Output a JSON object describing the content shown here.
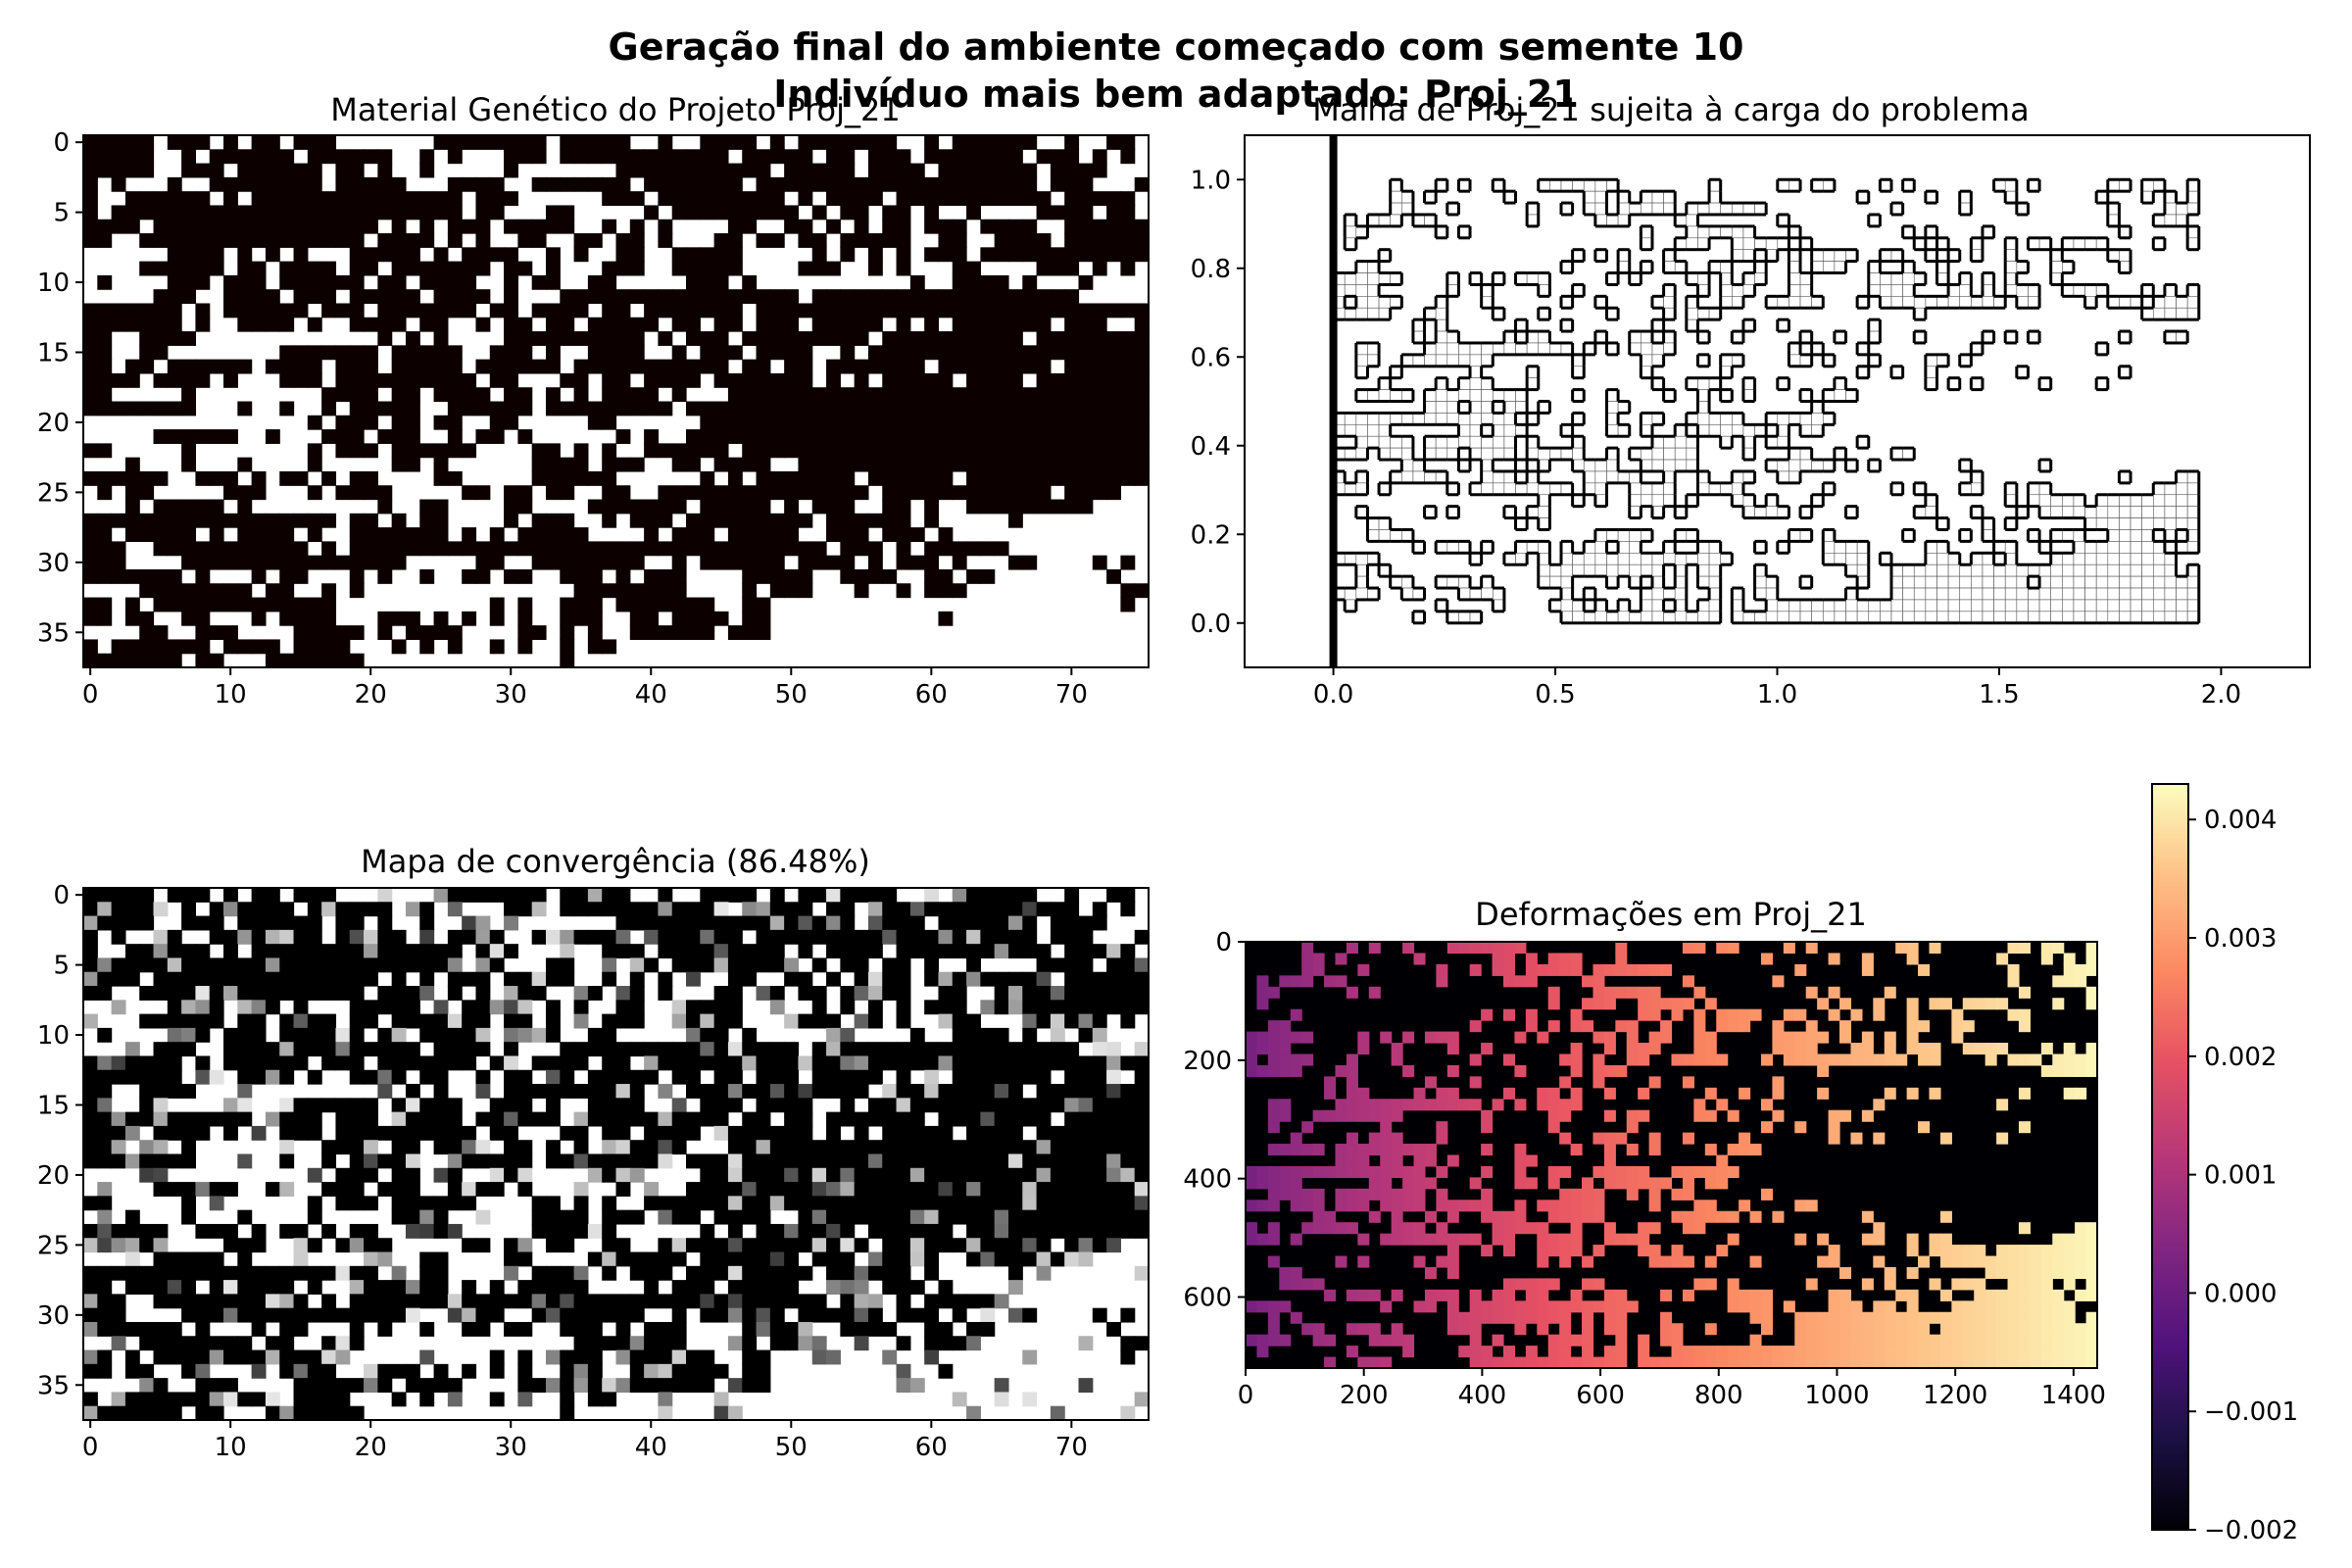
{
  "figure": {
    "title_line1": "Geração final do ambiente começado com semente 10",
    "title_line2": "Indivíduo mais bem adaptado: Proj_21"
  },
  "chart_data": [
    {
      "id": "genetic",
      "type": "heatmap",
      "title": "Material Genético do Projeto Proj_21",
      "colormap": "binary (black / white)",
      "grid_size": [
        38,
        76
      ],
      "xticks": [
        "0",
        "10",
        "20",
        "30",
        "40",
        "50",
        "60",
        "70"
      ],
      "xtick_values": [
        0,
        10,
        20,
        30,
        40,
        50,
        60,
        70
      ],
      "yticks": [
        "0",
        "5",
        "10",
        "15",
        "20",
        "25",
        "30",
        "35"
      ],
      "ytick_values": [
        0,
        5,
        10,
        15,
        20,
        25,
        30,
        35
      ],
      "xlim": [
        -0.5,
        75.5
      ],
      "ylim": [
        37.5,
        -0.5
      ],
      "colors": {
        "filled": "#0d0000",
        "empty": "#ffffff"
      },
      "rows": [
        "1111101110101101110000000111111110111110010011110101111111001011111100100110",
        "1111100101111110111111001010001110111111111111011111011011101111111011101010",
        "1111100111011111101101001000001000000011111111111011111011110111111101111000",
        "1010001001111111101111100011110011111110111111101111111111111111111101110001",
        "1001111110101111111111111110111000000111011111111101011110111111111110111110",
        "1011111111111111111111111110110001100000101111111110101101101001000011110110",
        "1111011111111111111110101011101111100101010000110011010101101110111100111111",
        "1100111111111111111101111010100110011011010001101101101111100110011110111111",
        "0000001111010101000111110101111001010011001111100000101010101110111111111111",
        "0000111111011011110110111111101101000111001111100001110010100011000011101010",
        "0100001110111011111101101111001011001100000111010000000000010011110100010000",
        "0000011100111101110111110111101000111111111111111110111111111111111111100000",
        "1111111010111111011101111111011011110110111111101111111111111111111111111111",
        "1111111010011110100111101100101101101111101101101110111110101011111110111001",
        "1100111100000000000001010100001111111111010111011111111101111111111011111111",
        "1100110000000011111110111110011101001111001011101111001011111111111111111111",
        "1101101111110111101110111110111111011111111111011011011111110111111110111111",
        "1111011110100011101111111111011000110110111101111111010101111101111011111111",
        "1100000100000000011110110111101101010111101000111111111111111111111111111111",
        "1111111100010010010111110011111101111111110111111111111111111111111111111111",
        "0000000000000000101110110110011000001100000011111111111111111111111111111111",
        "0000011111100100011101110010110100000010100111111111111111111111111111111111",
        "1100000100000000101110111111000011010100111111011111111111111111111111111111",
        "0001000100010000100000110100000011110111001101111001111111111111111111111111",
        "1111110011101011010110000110000011111100000010101111111011111101111111111111",
        "0101100000111000101111000001101101100110011111111111111101111111111110111100",
        "0001011111010000000001001100001100001111111011111010111001101001111111110000",
        "1111111111111111110110101100001011100101110111111111011111101000001000000000",
        "1101111101011110100111111101010111110000101110111110011101110100000000000000",
        "1110011111111111010111111111111111111111111111111111101110101111110000000000",
        "1110000111111111111111100000110011111111001011111101111010111010001100001010",
        "1111111010001011000101001001101100111010111000011111001111001101100000000100",
        "0000111111110110010100000000000000011111111000010111000100101110000000000011",
        "1101011111111111110000000000010100111011111110011000000000000000000000000010",
        "1101100110001011110001110101010100111001101111011000000000000100000000000000",
        "0000110011100001111101011110000110101001111110111000000000000000000000000000",
        "1011111110111101111000101010010100101100000000000000000000000000000000000000",
        "1111111011000111111100000000000000100000000000000000000000000000000000000000"
      ]
    },
    {
      "id": "mesh",
      "type": "scatter",
      "title": "Malha de Proj_21 sujeita à carga do problema",
      "xlim": [
        -0.2,
        2.2
      ],
      "ylim": [
        -0.1,
        1.1
      ],
      "xticks": [
        "0.0",
        "0.5",
        "1.0",
        "1.5",
        "2.0"
      ],
      "xtick_values": [
        0,
        0.5,
        1,
        1.5,
        2
      ],
      "yticks": [
        "0.0",
        "0.2",
        "0.4",
        "0.6",
        "0.8",
        "1.0"
      ],
      "ytick_values": [
        0,
        0.2,
        0.4,
        0.6,
        0.8,
        1.0
      ],
      "support_x": 0.0,
      "material_region_x_range": [
        0.0,
        1.95
      ],
      "material_region_y_range": [
        0.0,
        1.0
      ]
    },
    {
      "id": "convergence",
      "type": "heatmap",
      "title": "Mapa de convergência (86.48%)",
      "colormap": "gray (black = 1, white = 0)",
      "convergence_percent": 86.48,
      "grid_size": [
        38,
        76
      ],
      "xticks": [
        "0",
        "10",
        "20",
        "30",
        "40",
        "50",
        "60",
        "70"
      ],
      "xtick_values": [
        0,
        10,
        20,
        30,
        40,
        50,
        60,
        70
      ],
      "yticks": [
        "0",
        "5",
        "10",
        "15",
        "20",
        "25",
        "30",
        "35"
      ],
      "ytick_values": [
        0,
        5,
        10,
        15,
        20,
        25,
        30,
        35
      ],
      "xlim": [
        -0.5,
        75.5
      ],
      "ylim": [
        37.5,
        -0.5
      ]
    },
    {
      "id": "deformation",
      "type": "heatmap",
      "title": "Deformações em Proj_21",
      "colormap": "magma",
      "xlim": [
        0,
        1440
      ],
      "ylim": [
        720,
        0
      ],
      "xticks": [
        "0",
        "200",
        "400",
        "600",
        "800",
        "1000",
        "1200",
        "1400"
      ],
      "xtick_values": [
        0,
        200,
        400,
        600,
        800,
        1000,
        1200,
        1400
      ],
      "yticks": [
        "0",
        "200",
        "400",
        "600"
      ],
      "ytick_values": [
        0,
        200,
        400,
        600
      ],
      "colorbar": {
        "min": -0.002,
        "max": 0.0043,
        "ticks": [
          "0.004",
          "0.003",
          "0.002",
          "0.001",
          "0.000",
          "−0.001",
          "−0.002"
        ],
        "tick_values": [
          0.004,
          0.003,
          0.002,
          0.001,
          0.0,
          -0.001,
          -0.002
        ]
      },
      "value_range_left": 0.0002,
      "value_range_right": 0.0042
    }
  ]
}
